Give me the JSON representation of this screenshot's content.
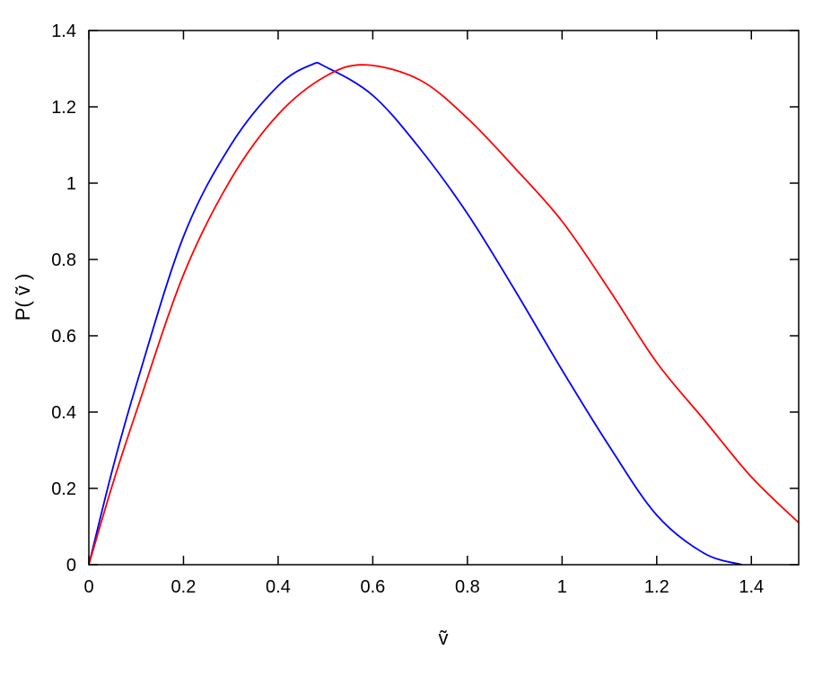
{
  "chart_data": {
    "type": "line",
    "title": "",
    "xlabel": "ṽ",
    "ylabel": "P( ṽ )",
    "xlim": [
      0,
      1.5
    ],
    "ylim": [
      0,
      1.4
    ],
    "xticks": [
      "0",
      "0.2",
      "0.4",
      "0.6",
      "0.8",
      "1",
      "1.2",
      "1.4"
    ],
    "yticks": [
      "0",
      "0.2",
      "0.4",
      "0.6",
      "0.8",
      "1",
      "1.2",
      "1.4"
    ],
    "grid": false,
    "series": [
      {
        "color": "#0000ff",
        "x": [
          0,
          0.05,
          0.1,
          0.2,
          0.3,
          0.4,
          0.47,
          0.5,
          0.6,
          0.7,
          0.8,
          0.9,
          1.0,
          1.1,
          1.2,
          1.3,
          1.38
        ],
        "y": [
          0,
          0.25,
          0.47,
          0.86,
          1.1,
          1.255,
          1.31,
          1.305,
          1.23,
          1.09,
          0.92,
          0.72,
          0.51,
          0.31,
          0.13,
          0.03,
          0.0
        ]
      },
      {
        "color": "#ff0000",
        "x": [
          0,
          0.05,
          0.1,
          0.2,
          0.3,
          0.4,
          0.5,
          0.585,
          0.7,
          0.8,
          0.9,
          1.0,
          1.1,
          1.2,
          1.3,
          1.4,
          1.5
        ],
        "y": [
          0,
          0.21,
          0.4,
          0.76,
          1.01,
          1.18,
          1.28,
          1.31,
          1.27,
          1.17,
          1.04,
          0.9,
          0.72,
          0.53,
          0.38,
          0.23,
          0.11
        ]
      }
    ]
  }
}
